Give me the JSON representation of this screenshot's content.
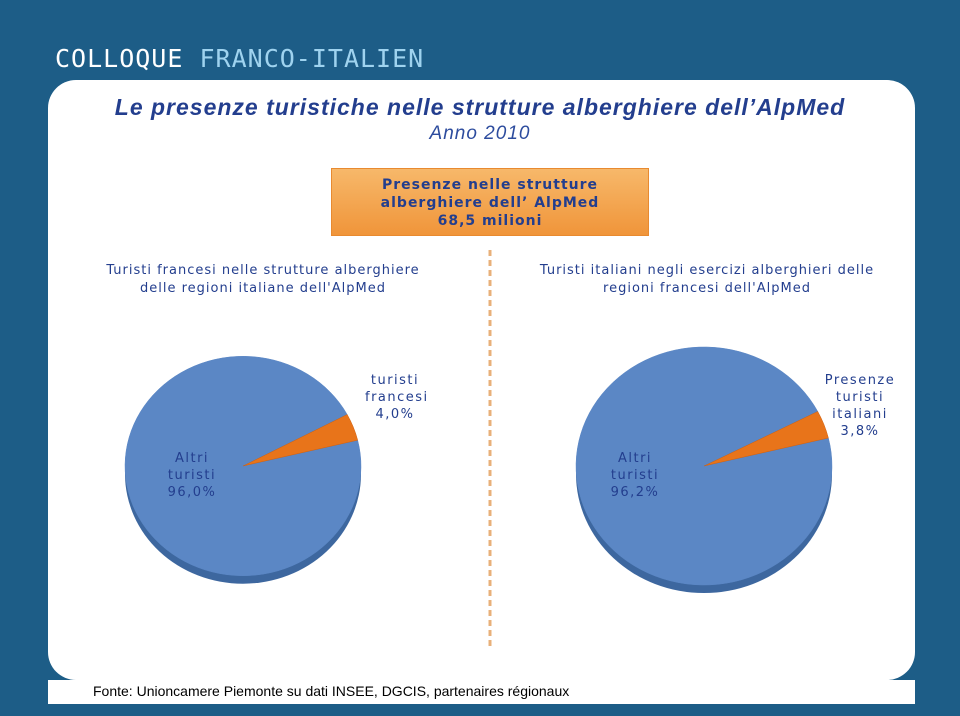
{
  "header": {
    "brand_left": "COLLOQUE",
    "brand_right": "FRANCO-ITALIEN"
  },
  "title": "Le presenze turistiche nelle strutture alberghiere dell’AlpMed",
  "subtitle": "Anno 2010",
  "total_box": {
    "line1": "Presenze nelle strutture",
    "line2": "alberghiere dell’ AlpMed",
    "line3": "68,5 milioni"
  },
  "source": "Fonte: Unioncamere Piemonte su dati INSEE, DGCIS, partenaires régionaux",
  "chart_data": [
    {
      "type": "pie",
      "title": "Turisti francesi nelle strutture alberghiere delle regioni italiane dell'AlpMed",
      "categories": [
        "Altri turisti",
        "turisti francesi"
      ],
      "values": [
        96.0,
        4.0
      ],
      "value_labels": [
        "96,0%",
        "4,0%"
      ],
      "colors": [
        "#5b87c5",
        "#e8741a"
      ]
    },
    {
      "type": "pie",
      "title": "Turisti italiani negli esercizi alberghieri delle regioni francesi dell'AlpMed",
      "categories": [
        "Altri turisti",
        "Presenze turisti italiani"
      ],
      "values": [
        96.2,
        3.8
      ],
      "value_labels": [
        "96,2%",
        "3,8%"
      ],
      "colors": [
        "#5b87c5",
        "#e8741a"
      ]
    }
  ]
}
